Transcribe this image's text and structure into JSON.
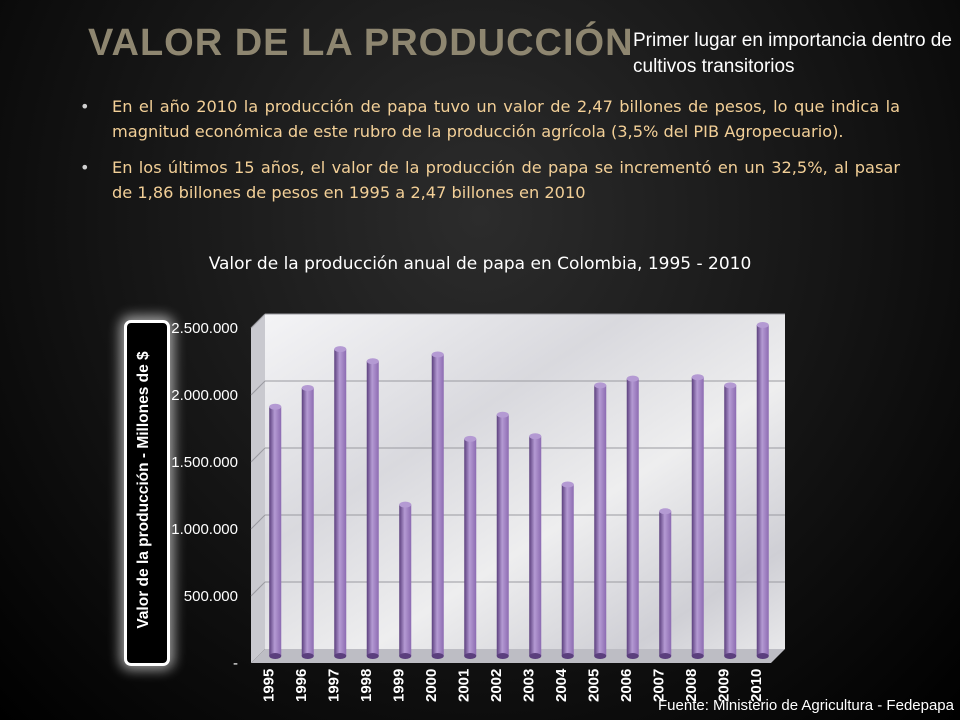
{
  "slide": {
    "title": "VALOR DE LA PRODUCCIÓN",
    "note": "Primer lugar en importancia dentro de cultivos transitorios",
    "bullets": [
      "En el año 2010 la producción de papa tuvo un valor de 2,47 billones de pesos, lo que indica la magnitud económica de este rubro de la producción agrícola (3,5% del PIB Agropecuario).",
      "En los últimos 15 años, el valor de la producción de papa se incrementó en un 32,5%, al pasar de 1,86 billones de pesos en 1995 a 2,47 billones en 2010"
    ],
    "source": "Fuente: Ministerio de Agricultura - Fedepapa"
  },
  "colors": {
    "title": "#8e8670",
    "bullet_text": "#f2cf97",
    "bar": "#8c6bb1",
    "bar_dark": "#5b3f7d",
    "bar_light": "#b49ad3"
  },
  "chart_data": {
    "type": "bar",
    "title": "Valor de la producción anual de papa en Colombia, 1995 - 2010",
    "ylabel": "Valor de la producción - Millones de $",
    "xlabel": "",
    "categories": [
      "1995",
      "1996",
      "1997",
      "1998",
      "1999",
      "2000",
      "2001",
      "2002",
      "2003",
      "2004",
      "2005",
      "2006",
      "2007",
      "2008",
      "2009",
      "2010"
    ],
    "values": [
      1860000,
      2000000,
      2290000,
      2200000,
      1130000,
      2250000,
      1620000,
      1800000,
      1640000,
      1280000,
      2020000,
      2070000,
      1080000,
      2080000,
      2020000,
      2470000
    ],
    "ylim": [
      0,
      2500000
    ],
    "yticks": [
      0,
      500000,
      1000000,
      1500000,
      2000000,
      2500000
    ],
    "ytick_labels": [
      "-",
      "500.000",
      "1.000.000",
      "1.500.000",
      "2.000.000",
      "2.500.000"
    ],
    "grid": true,
    "background": "marble"
  }
}
